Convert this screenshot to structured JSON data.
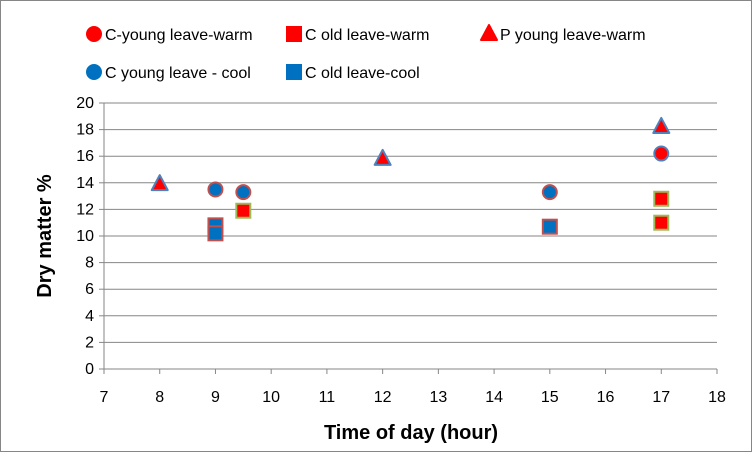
{
  "chart_data": {
    "type": "scatter",
    "xlabel": "Time of day (hour)",
    "ylabel": "Dry matter %",
    "xlim": [
      7,
      18
    ],
    "ylim": [
      0,
      20
    ],
    "x_ticks": [
      7,
      8,
      9,
      10,
      11,
      12,
      13,
      14,
      15,
      16,
      17,
      18
    ],
    "y_ticks": [
      0,
      2,
      4,
      6,
      8,
      10,
      12,
      14,
      16,
      18,
      20
    ],
    "grid": "horizontal major",
    "legend_position": "top",
    "series": [
      {
        "name": "C-young leave-warm",
        "marker": "circle",
        "fill": "#ff0000",
        "stroke": "#4f81bd",
        "points": [
          {
            "x": 17,
            "y": 16.2
          }
        ]
      },
      {
        "name": "C old leave-warm",
        "marker": "square",
        "fill": "#ff0000",
        "stroke": "#9bbb59",
        "points": [
          {
            "x": 9.5,
            "y": 11.9
          },
          {
            "x": 17,
            "y": 12.8
          },
          {
            "x": 17,
            "y": 11.0
          }
        ]
      },
      {
        "name": "P young leave-warm",
        "marker": "triangle",
        "fill": "#ff0000",
        "stroke": "#4f81bd",
        "points": [
          {
            "x": 8,
            "y": 13.9
          },
          {
            "x": 12,
            "y": 15.8
          },
          {
            "x": 17,
            "y": 18.2
          }
        ]
      },
      {
        "name": "C young leave - cool",
        "marker": "circle",
        "fill": "#0070c0",
        "stroke": "#c0504d",
        "points": [
          {
            "x": 9,
            "y": 13.5
          },
          {
            "x": 9.5,
            "y": 13.3
          },
          {
            "x": 15,
            "y": 13.3
          }
        ]
      },
      {
        "name": "C old leave-cool",
        "marker": "square",
        "fill": "#0070c0",
        "stroke": "#c0504d",
        "points": [
          {
            "x": 9,
            "y": 10.8
          },
          {
            "x": 9,
            "y": 10.2
          },
          {
            "x": 15,
            "y": 10.7
          }
        ]
      }
    ],
    "colors": {
      "axis": "#868686",
      "grid": "#868686"
    }
  }
}
